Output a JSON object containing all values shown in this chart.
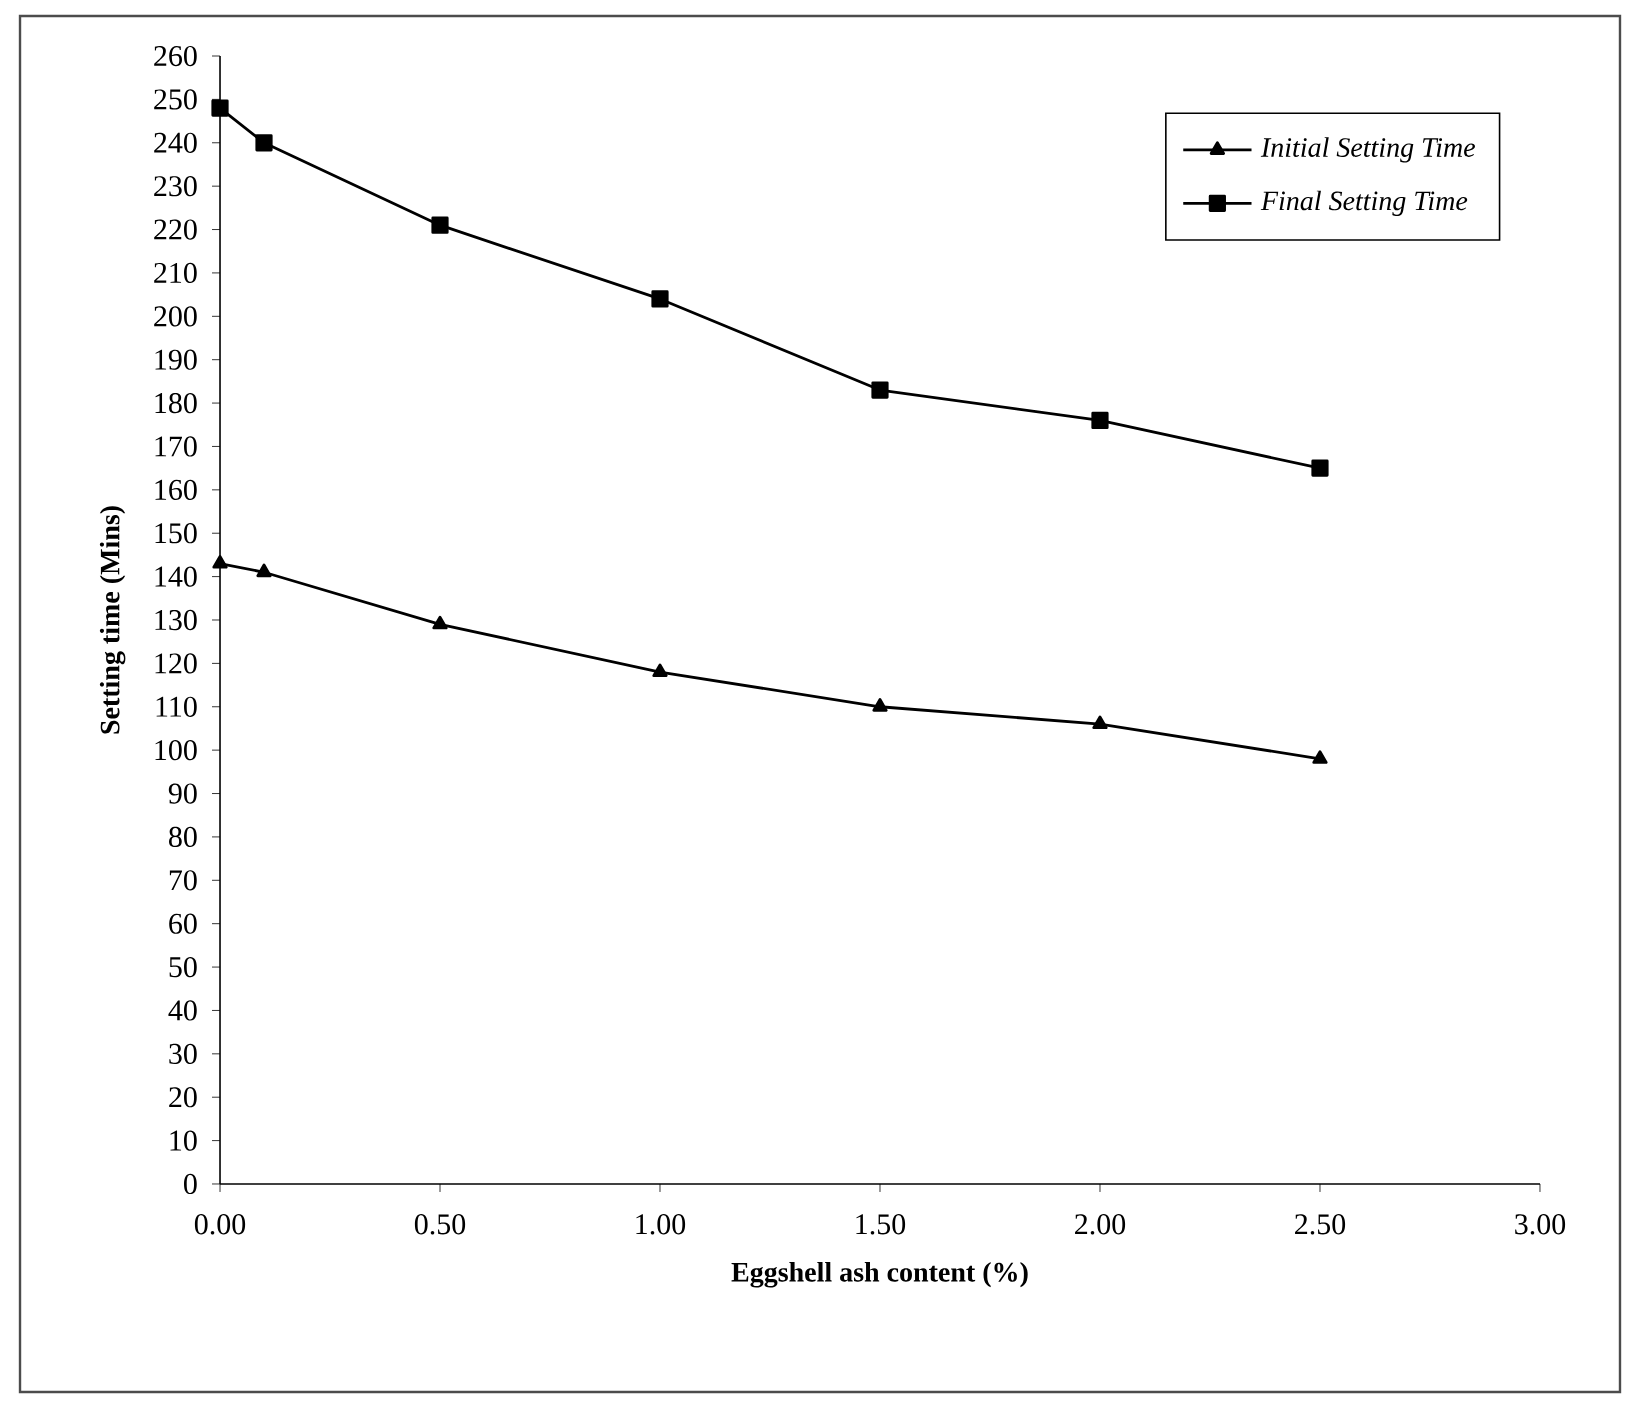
{
  "chart_data": {
    "type": "line",
    "xlabel": "Eggshell ash content (%)",
    "ylabel": "Setting time (Mins)",
    "x": [
      0,
      0.1,
      0.5,
      1.0,
      1.5,
      2.0,
      2.5
    ],
    "series": [
      {
        "name": "Initial Setting Time",
        "color": "#000000",
        "marker": "triangle",
        "values": [
          143,
          141,
          129,
          118,
          110,
          106,
          98
        ]
      },
      {
        "name": "Final Setting Time",
        "color": "#000000",
        "marker": "square",
        "values": [
          248,
          240,
          221,
          204,
          183,
          176,
          165
        ]
      }
    ],
    "xlim": [
      0,
      3
    ],
    "ylim": [
      0,
      260
    ],
    "xticks": [
      {
        "value": 0,
        "label": "0.00"
      },
      {
        "value": 0.5,
        "label": "0.50"
      },
      {
        "value": 1,
        "label": "1.00"
      },
      {
        "value": 1.5,
        "label": "1.50"
      },
      {
        "value": 2,
        "label": "2.00"
      },
      {
        "value": 2.5,
        "label": "2.50"
      },
      {
        "value": 3,
        "label": "3.00"
      }
    ],
    "yticks": [
      0,
      10,
      20,
      30,
      40,
      50,
      60,
      70,
      80,
      90,
      100,
      110,
      120,
      130,
      140,
      150,
      160,
      170,
      180,
      190,
      200,
      210,
      220,
      230,
      240,
      250,
      260
    ],
    "grid": false,
    "legend": "top right",
    "line_style": "solid"
  }
}
